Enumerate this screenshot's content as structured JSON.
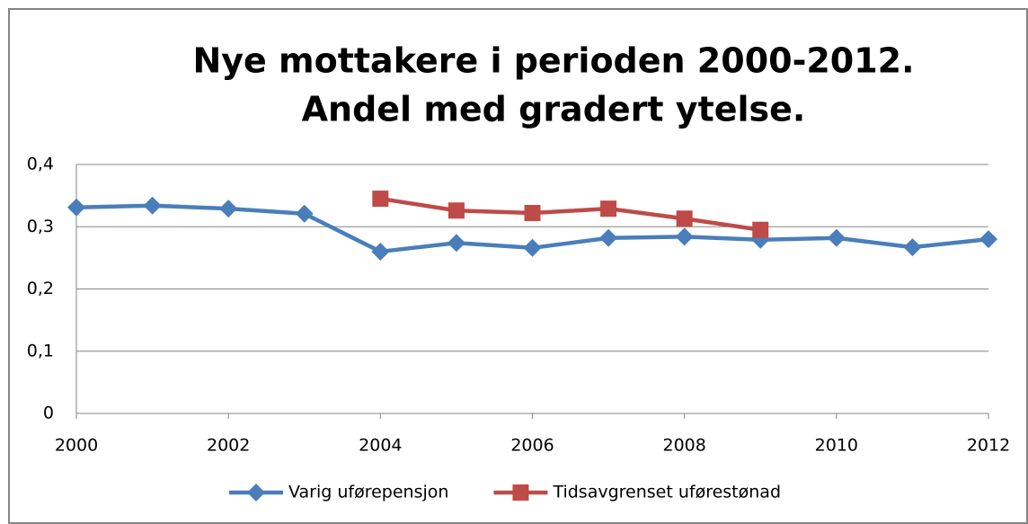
{
  "chart_data": {
    "type": "line",
    "title": [
      "Nye mottakere i perioden 2000-2012.",
      "Andel med gradert ytelse."
    ],
    "x": [
      2000,
      2001,
      2002,
      2003,
      2004,
      2005,
      2006,
      2007,
      2008,
      2009,
      2010,
      2011,
      2012
    ],
    "series": [
      {
        "name": "Varig uførepensjon",
        "color": "#4a7ebb",
        "marker": "diamond",
        "values": [
          0.331,
          0.334,
          0.329,
          0.321,
          0.26,
          0.274,
          0.266,
          0.282,
          0.284,
          0.279,
          0.282,
          0.267,
          0.28
        ]
      },
      {
        "name": "Tidsavgrenset uførestønad",
        "color": "#be4b48",
        "marker": "square",
        "values": [
          null,
          null,
          null,
          null,
          0.345,
          0.326,
          0.322,
          0.329,
          0.313,
          0.295,
          null,
          null,
          null
        ]
      }
    ],
    "xlim": [
      2000,
      2012
    ],
    "xticks": [
      2000,
      2002,
      2004,
      2006,
      2008,
      2010,
      2012
    ],
    "ylim": [
      0,
      0.4
    ],
    "yticks": [
      0,
      {
        "value": 0.1,
        "label": "0,1"
      },
      {
        "value": 0.2,
        "label": "0,2"
      },
      {
        "value": 0.3,
        "label": "0,3"
      },
      {
        "value": 0.4,
        "label": "0,4"
      }
    ],
    "grid": true,
    "legend": "bottom"
  }
}
